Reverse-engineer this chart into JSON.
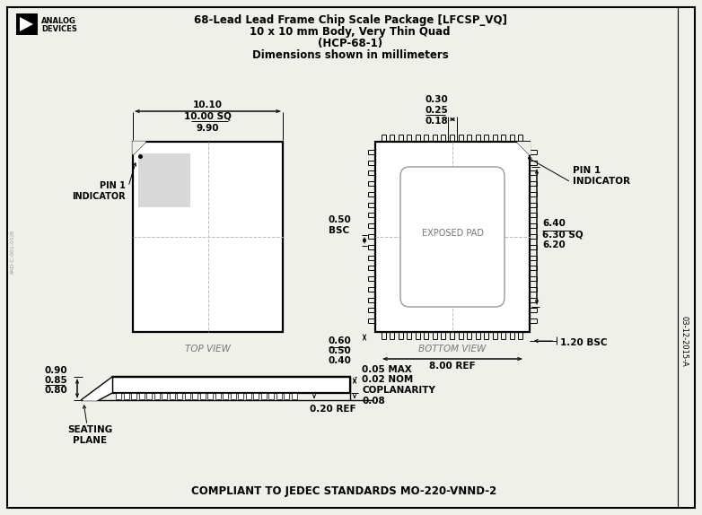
{
  "title_line1": "68-Lead Lead Frame Chip Scale Package [LFCSP_VQ]",
  "title_line2": "10 x 10 mm Body, Very Thin Quad",
  "title_line3": "(HCP-68-1)",
  "title_line4": "Dimensions shown in millimeters",
  "bg_color": "#f0f0ea",
  "compliant_text": "COMPLIANT TO JEDEC STANDARDS MO-220-VNND-2",
  "date_code": "03-12-2015-A"
}
